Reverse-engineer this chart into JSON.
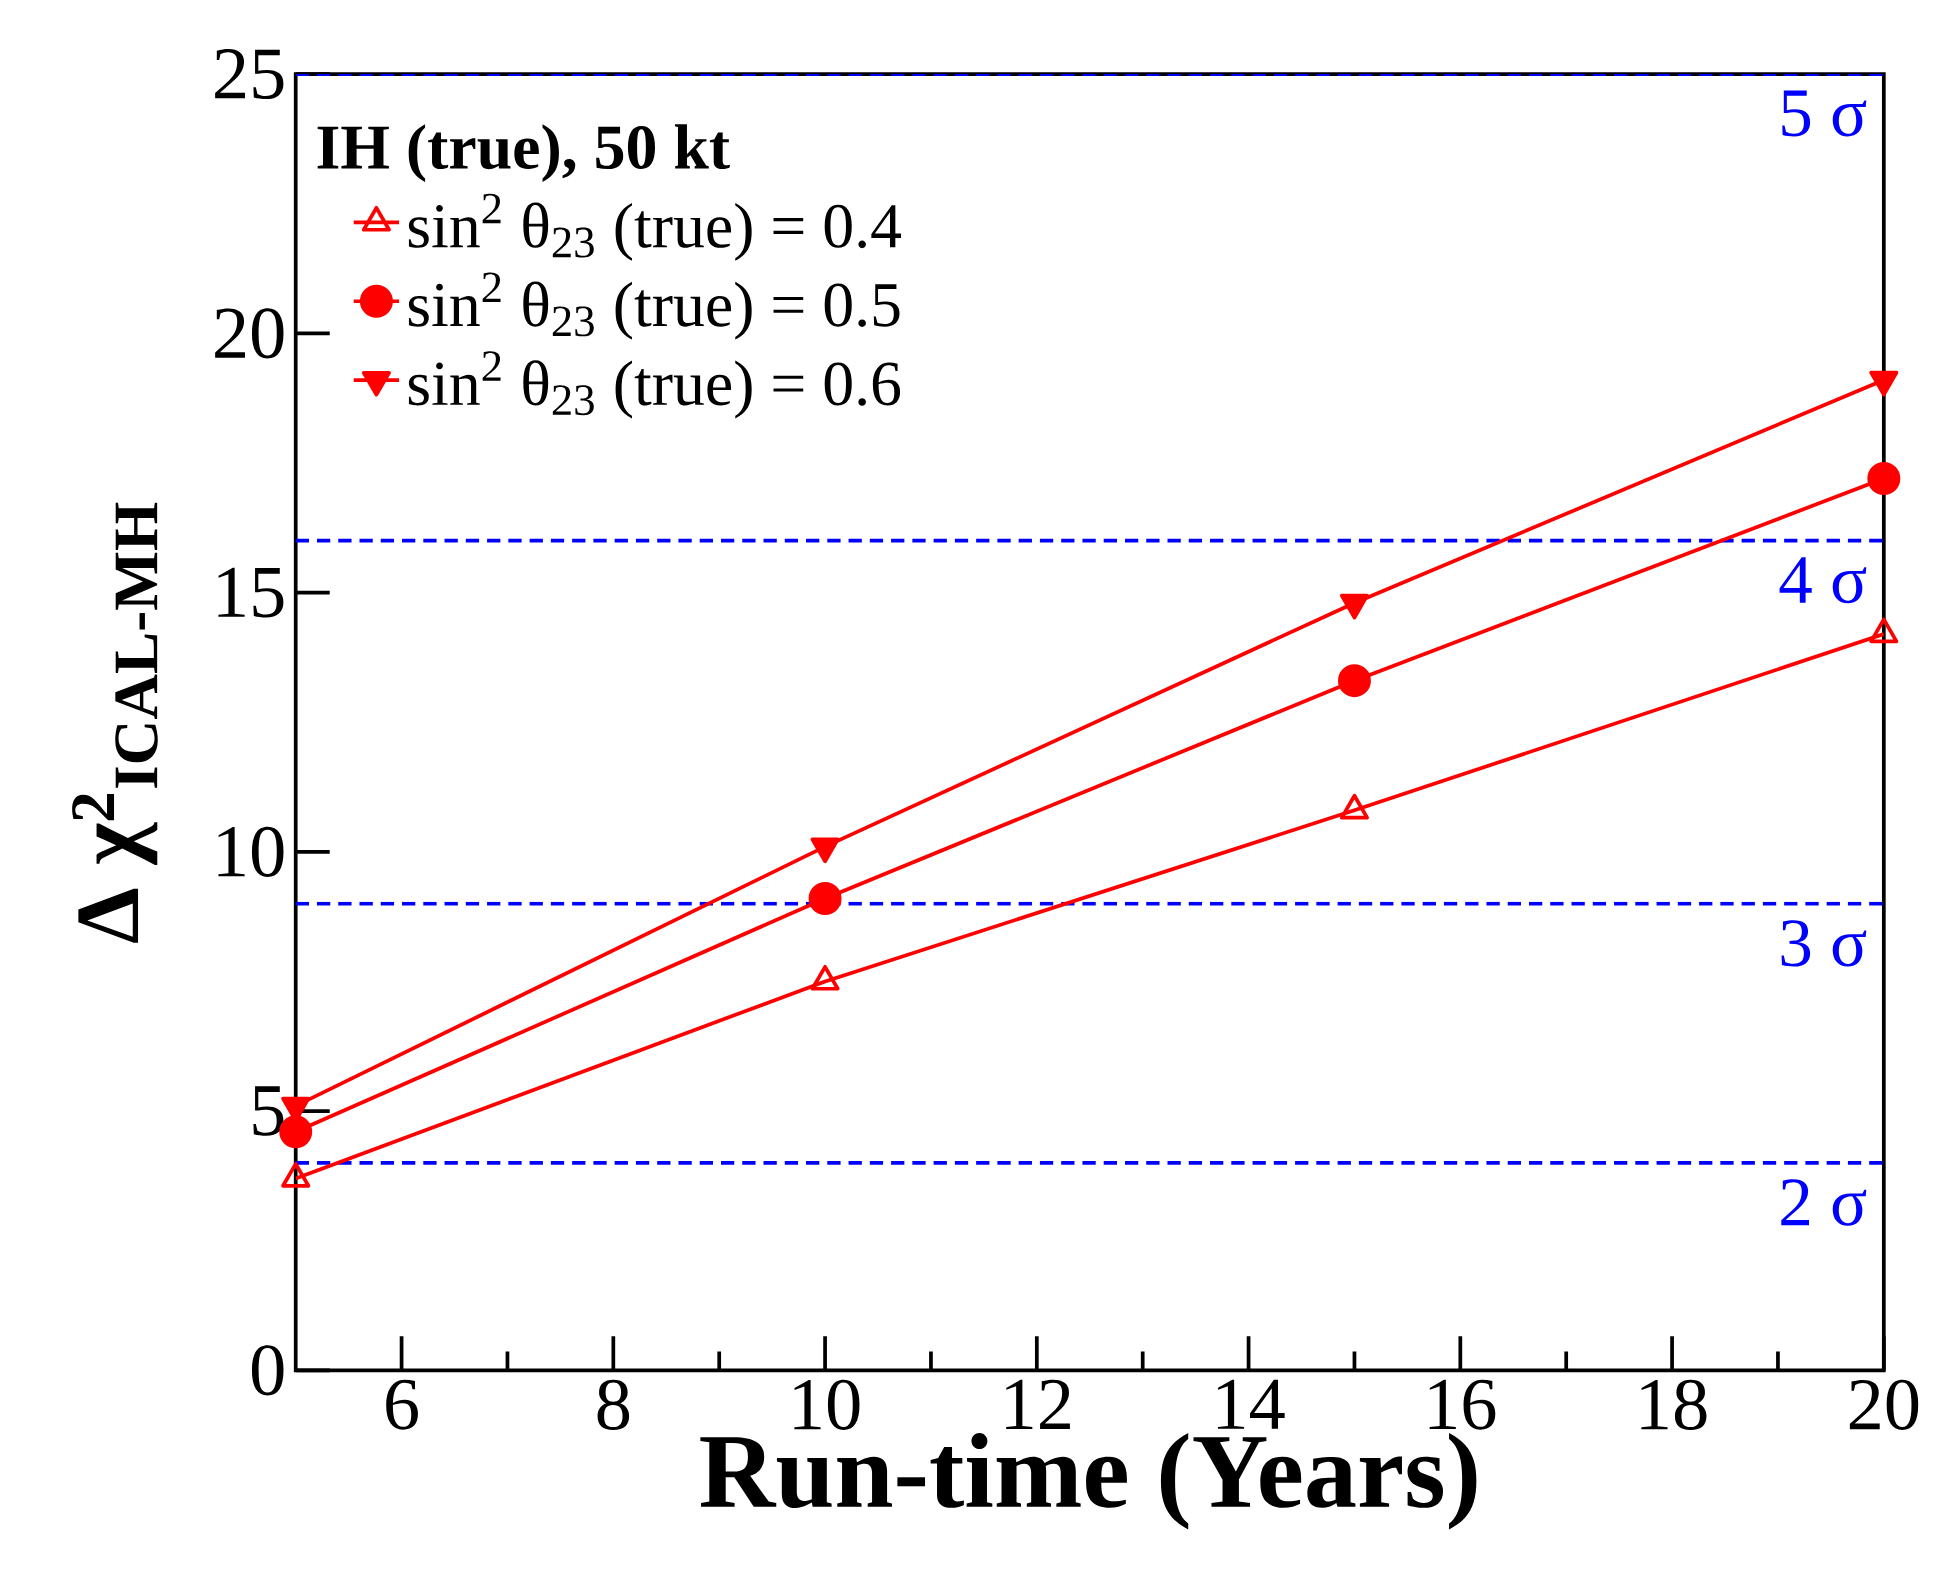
{
  "chart_data": {
    "type": "line",
    "xlabel": "Run-time (Years)",
    "ylabel": "Δ χ$^{2}$$_{ICAL-MH}$",
    "legend_title": "IH (true), 50 kt",
    "x": [
      5,
      10,
      15,
      20
    ],
    "series": [
      {
        "name": "sin$^{2}$ θ$_{23}$ (true) = 0.4",
        "color": "#ff0000",
        "marker": "triangle",
        "values": [
          3.7,
          7.5,
          10.8,
          14.2
        ]
      },
      {
        "name": "sin$^{2}$ θ$_{23}$ (true) = 0.5",
        "color": "#ff0000",
        "marker": "circle",
        "values": [
          4.6,
          9.1,
          13.3,
          17.2
        ]
      },
      {
        "name": "sin$^{2}$ θ$_{23}$ (true) = 0.6",
        "color": "#ff0000",
        "marker": "triangle-down",
        "values": [
          5.1,
          10.1,
          14.8,
          19.1
        ]
      }
    ],
    "xlim": [
      5,
      20
    ],
    "xticks": [
      6,
      8,
      10,
      12,
      14,
      16,
      18,
      20
    ],
    "ylim": [
      0,
      25
    ],
    "yticks": [
      0,
      5,
      10,
      15,
      20,
      25
    ],
    "ref_lines": [
      {
        "axis": "y",
        "value": 4,
        "label": "2 σ",
        "color": "#0000ff",
        "line_style": "dashed"
      },
      {
        "axis": "y",
        "value": 9,
        "label": "3 σ",
        "color": "#0000ff",
        "line_style": "dashed"
      },
      {
        "axis": "y",
        "value": 16,
        "label": "4 σ",
        "color": "#0000ff",
        "line_style": "dashed"
      },
      {
        "axis": "y",
        "value": 25,
        "label": "5 σ",
        "color": "#0000ff",
        "line_style": "dashed"
      }
    ],
    "legend": "top left",
    "grid": false
  }
}
